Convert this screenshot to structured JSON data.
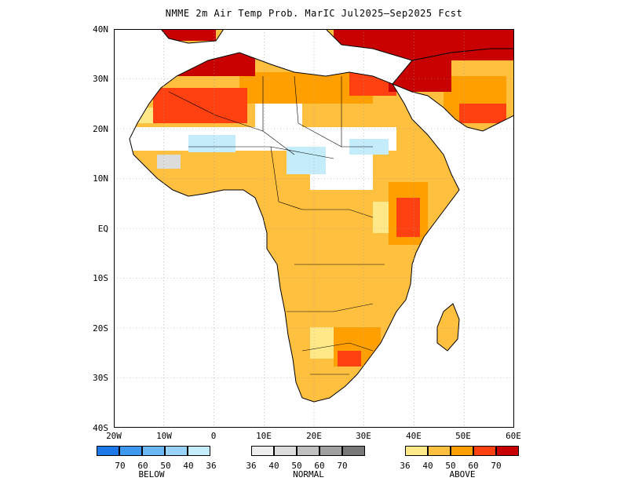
{
  "title": "NMME 2m Air Temp Prob. MarIC  Jul2025–Sep2025 Fcst",
  "y_labels": [
    "40N",
    "30N",
    "20N",
    "10N",
    "EQ",
    "10S",
    "20S",
    "30S",
    "40S"
  ],
  "x_labels": [
    "20W",
    "10W",
    "0",
    "10E",
    "20E",
    "30E",
    "40E",
    "50E",
    "60E"
  ],
  "legends": {
    "below": {
      "caption": "BELOW",
      "ticks": [
        "70",
        "60",
        "50",
        "40",
        "36"
      ],
      "colors": [
        "#1f78e8",
        "#3f98f0",
        "#6bb8f4",
        "#98d2f8",
        "#c4ecfa"
      ]
    },
    "normal": {
      "caption": "NORMAL",
      "ticks": [
        "36",
        "40",
        "50",
        "60",
        "70"
      ],
      "colors": [
        "#eeeeee",
        "#dcdcdc",
        "#c0c0c0",
        "#a0a0a0",
        "#787878"
      ]
    },
    "above": {
      "caption": "ABOVE",
      "ticks": [
        "36",
        "40",
        "50",
        "60",
        "70"
      ],
      "colors": [
        "#ffe888",
        "#ffc040",
        "#ffa000",
        "#ff4010",
        "#c80000"
      ]
    }
  }
}
